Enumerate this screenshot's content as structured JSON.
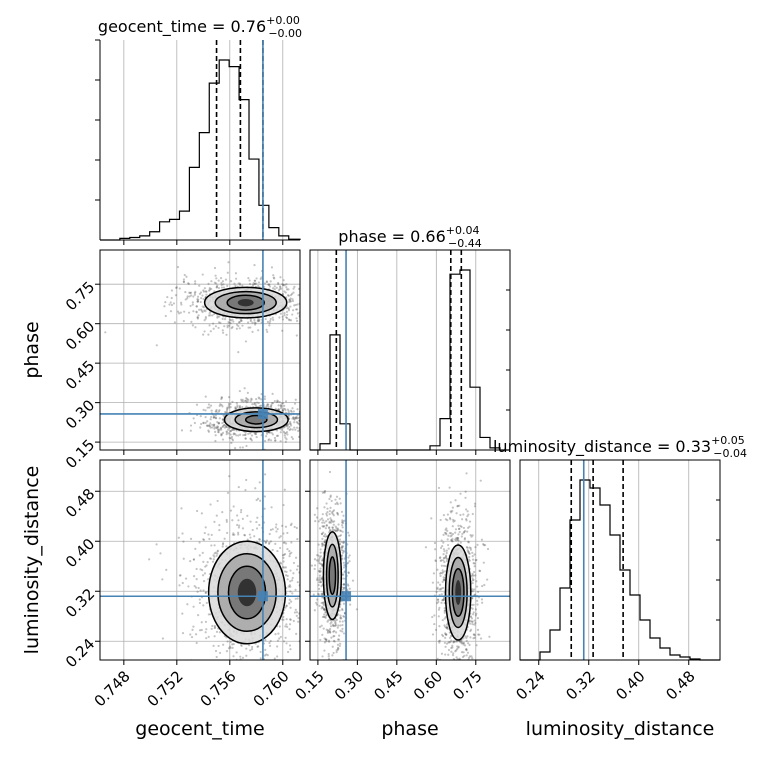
{
  "chart_data": {
    "type": "corner",
    "params": [
      "geocent_time",
      "phase",
      "luminosity_distance"
    ],
    "axis_labels": {
      "geocent_time": "geocent_time",
      "phase": "phase",
      "luminosity_distance": "luminosity_distance"
    },
    "ranges": {
      "geocent_time": [
        0.7462,
        0.7613
      ],
      "phase": [
        0.12,
        0.88
      ],
      "luminosity_distance": [
        0.21,
        0.53
      ]
    },
    "ticks": {
      "geocent_time": [
        "0.748",
        "0.752",
        "0.756",
        "0.760"
      ],
      "phase": [
        "0.15",
        "0.30",
        "0.45",
        "0.60",
        "0.75"
      ],
      "luminosity_distance": [
        "0.24",
        "0.32",
        "0.40",
        "0.48"
      ]
    },
    "tick_values": {
      "geocent_time": [
        0.748,
        0.752,
        0.756,
        0.76
      ],
      "phase": [
        0.15,
        0.3,
        0.45,
        0.6,
        0.75
      ],
      "luminosity_distance": [
        0.24,
        0.32,
        0.4,
        0.48
      ]
    },
    "titles": [
      {
        "name": "geocent_time",
        "value": "0.76",
        "upper": "+0.00",
        "lower": "−0.00"
      },
      {
        "name": "phase",
        "value": "0.66",
        "upper": "+0.04",
        "lower": "−0.44"
      },
      {
        "name": "luminosity_distance",
        "value": "0.33",
        "upper": "+0.05",
        "lower": "−0.04"
      }
    ],
    "truths": {
      "geocent_time": 0.7585,
      "phase": 0.257,
      "luminosity_distance": 0.312
    },
    "quantiles": {
      "geocent_time": [
        0.755,
        0.7568,
        0.7585
      ],
      "phase": [
        0.22,
        0.655,
        0.695
      ],
      "luminosity_distance": [
        0.292,
        0.327,
        0.375
      ]
    },
    "histograms": {
      "geocent_time": {
        "edges": [
          0.7462,
          0.74695,
          0.7477,
          0.74845,
          0.7492,
          0.74995,
          0.7507,
          0.75145,
          0.7522,
          0.75295,
          0.7537,
          0.75445,
          0.7552,
          0.75595,
          0.7567,
          0.75745,
          0.7582,
          0.75895,
          0.7597,
          0.76045,
          0.7613
        ],
        "counts": [
          0,
          0,
          2,
          3,
          5,
          10,
          22,
          25,
          35,
          88,
          130,
          190,
          218,
          210,
          170,
          98,
          42,
          15,
          5,
          1
        ]
      },
      "phase": {
        "edges": [
          0.12,
          0.158,
          0.196,
          0.234,
          0.272,
          0.31,
          0.348,
          0.386,
          0.424,
          0.462,
          0.5,
          0.538,
          0.576,
          0.614,
          0.652,
          0.69,
          0.728,
          0.766,
          0.804,
          0.842,
          0.88
        ],
        "counts": [
          0,
          6,
          110,
          25,
          0,
          0,
          0,
          0,
          0,
          0,
          0,
          0,
          4,
          30,
          168,
          172,
          60,
          12,
          2,
          0
        ]
      },
      "luminosity_distance": {
        "edges": [
          0.21,
          0.226,
          0.242,
          0.258,
          0.274,
          0.29,
          0.306,
          0.322,
          0.338,
          0.354,
          0.37,
          0.386,
          0.402,
          0.418,
          0.434,
          0.45,
          0.466,
          0.482,
          0.498,
          0.514,
          0.53
        ],
        "counts": [
          0,
          0,
          8,
          30,
          72,
          140,
          180,
          172,
          155,
          125,
          90,
          65,
          40,
          22,
          12,
          5,
          3,
          1,
          0,
          0
        ]
      }
    },
    "contour_clusters": [
      {
        "panel": "phase_vs_geocent_time",
        "center": [
          0.7572,
          0.68
        ],
        "levels": [
          [
            0.0031,
            0.058
          ],
          [
            0.0023,
            0.042
          ],
          [
            0.0014,
            0.028
          ],
          [
            0.0006,
            0.014
          ]
        ]
      },
      {
        "panel": "phase_vs_geocent_time",
        "center": [
          0.758,
          0.235
        ],
        "levels": [
          [
            0.0024,
            0.045
          ],
          [
            0.0016,
            0.03
          ],
          [
            0.0008,
            0.016
          ]
        ]
      },
      {
        "panel": "luminosity_distance_vs_geocent_time",
        "center": [
          0.7573,
          0.318
        ],
        "levels": [
          [
            0.0029,
            0.082
          ],
          [
            0.0022,
            0.062
          ],
          [
            0.0014,
            0.042
          ],
          [
            0.0007,
            0.022
          ]
        ]
      },
      {
        "panel": "luminosity_distance_vs_phase",
        "center": [
          0.205,
          0.345
        ],
        "levels": [
          [
            0.034,
            0.07
          ],
          [
            0.022,
            0.05
          ],
          [
            0.012,
            0.03
          ]
        ]
      },
      {
        "panel": "luminosity_distance_vs_phase",
        "center": [
          0.683,
          0.318
        ],
        "levels": [
          [
            0.048,
            0.076
          ],
          [
            0.034,
            0.056
          ],
          [
            0.022,
            0.038
          ],
          [
            0.011,
            0.02
          ]
        ]
      }
    ],
    "colors": {
      "truth": "#4682b4",
      "hist": "#000000",
      "grid": "#b0b0b0",
      "scatter": "#555555"
    },
    "grid": true
  }
}
